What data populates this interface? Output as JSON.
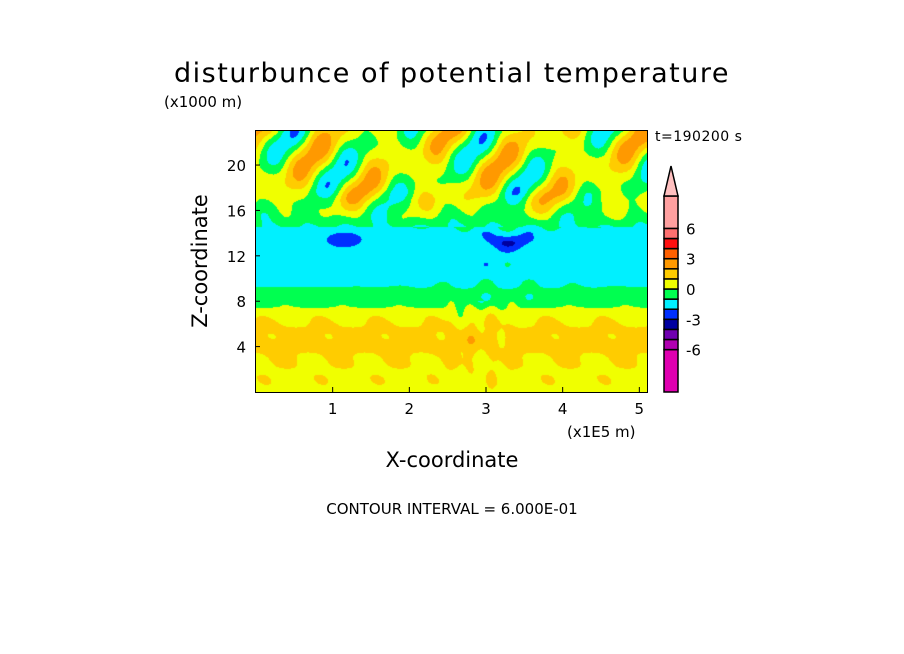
{
  "title": "disturbunce of potential temperature",
  "y_unit": "(x1000 m)",
  "x_unit": "(x1E5 m)",
  "time_label": "t=190200 s",
  "contour_interval": "CONTOUR INTERVAL = 6.000E-01",
  "chart_data": {
    "type": "heatmap",
    "title": "disturbunce of potential temperature",
    "xlabel": "X-coordinate",
    "ylabel": "Z-coordinate",
    "xlim": [
      0,
      5.1
    ],
    "ylim": [
      0,
      23
    ],
    "x_ticks": [
      1,
      2,
      3,
      4,
      5
    ],
    "x_tick_labels": [
      "1",
      "2",
      "3",
      "4",
      "5"
    ],
    "y_ticks": [
      4,
      8,
      12,
      16,
      20
    ],
    "y_tick_labels": [
      "4",
      "8",
      "12",
      "16",
      "20"
    ],
    "colorbar": {
      "levels": [
        -6,
        -5,
        -4,
        -3,
        -2,
        -1,
        0,
        1,
        2,
        3,
        4,
        5,
        6
      ],
      "colors": [
        "#e000b0",
        "#b000b0",
        "#7000b0",
        "#0000a0",
        "#0030ff",
        "#00f0ff",
        "#00ff50",
        "#f0ff00",
        "#ffcc00",
        "#ff9900",
        "#ff6000",
        "#ff1010",
        "#ff7070",
        "#ffa0a0"
      ],
      "over_color": "#ffc0c0",
      "tick_values": [
        6,
        3,
        0,
        -3,
        -6
      ],
      "tick_labels": [
        "6",
        "3",
        "0",
        "-3",
        "-6"
      ],
      "placement": "right"
    },
    "field_description_regions": [
      {
        "z_range": [
          0,
          7.5
        ],
        "typical_value_range": [
          0,
          2
        ]
      },
      {
        "z_range": [
          7.5,
          9
        ],
        "typical_value_range": [
          -1,
          0
        ]
      },
      {
        "z_range": [
          9,
          14.5
        ],
        "typical_value_range": [
          -3,
          -1
        ]
      },
      {
        "z_range": [
          14.5,
          23
        ],
        "typical_value_range": [
          -4,
          3
        ]
      }
    ]
  }
}
